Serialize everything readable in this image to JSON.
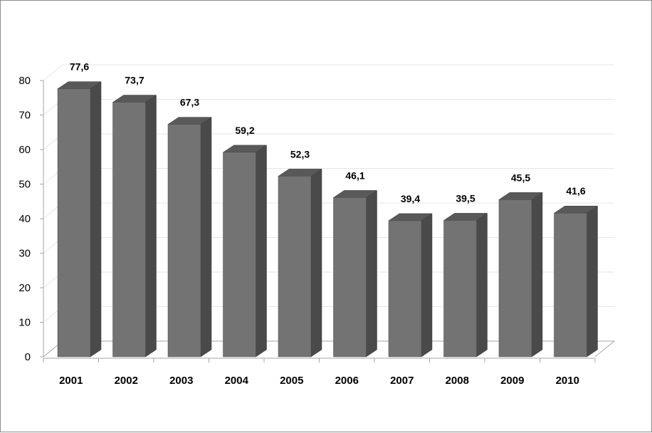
{
  "chart_data": {
    "type": "bar",
    "style": "3d-column",
    "categories": [
      "2001",
      "2002",
      "2003",
      "2004",
      "2005",
      "2006",
      "2007",
      "2008",
      "2009",
      "2010"
    ],
    "values": [
      77.6,
      73.7,
      67.3,
      59.2,
      52.3,
      46.1,
      39.4,
      39.5,
      45.5,
      41.6
    ],
    "data_labels": [
      "77,6",
      "73,7",
      "67,3",
      "59,2",
      "52,3",
      "46,1",
      "39,4",
      "39,5",
      "45,5",
      "41,6"
    ],
    "yticks": [
      "0",
      "10",
      "20",
      "30",
      "40",
      "50",
      "60",
      "70",
      "80"
    ],
    "ylim": [
      0,
      80
    ],
    "title": "",
    "xlabel": "",
    "ylabel": "",
    "grid": true,
    "legend": "none",
    "colors": {
      "bar_front": "#737373",
      "bar_side": "#4a4a4a",
      "bar_top": "#595959",
      "gridline": "#e6e6e6",
      "axis": "#a6a6a6"
    }
  }
}
